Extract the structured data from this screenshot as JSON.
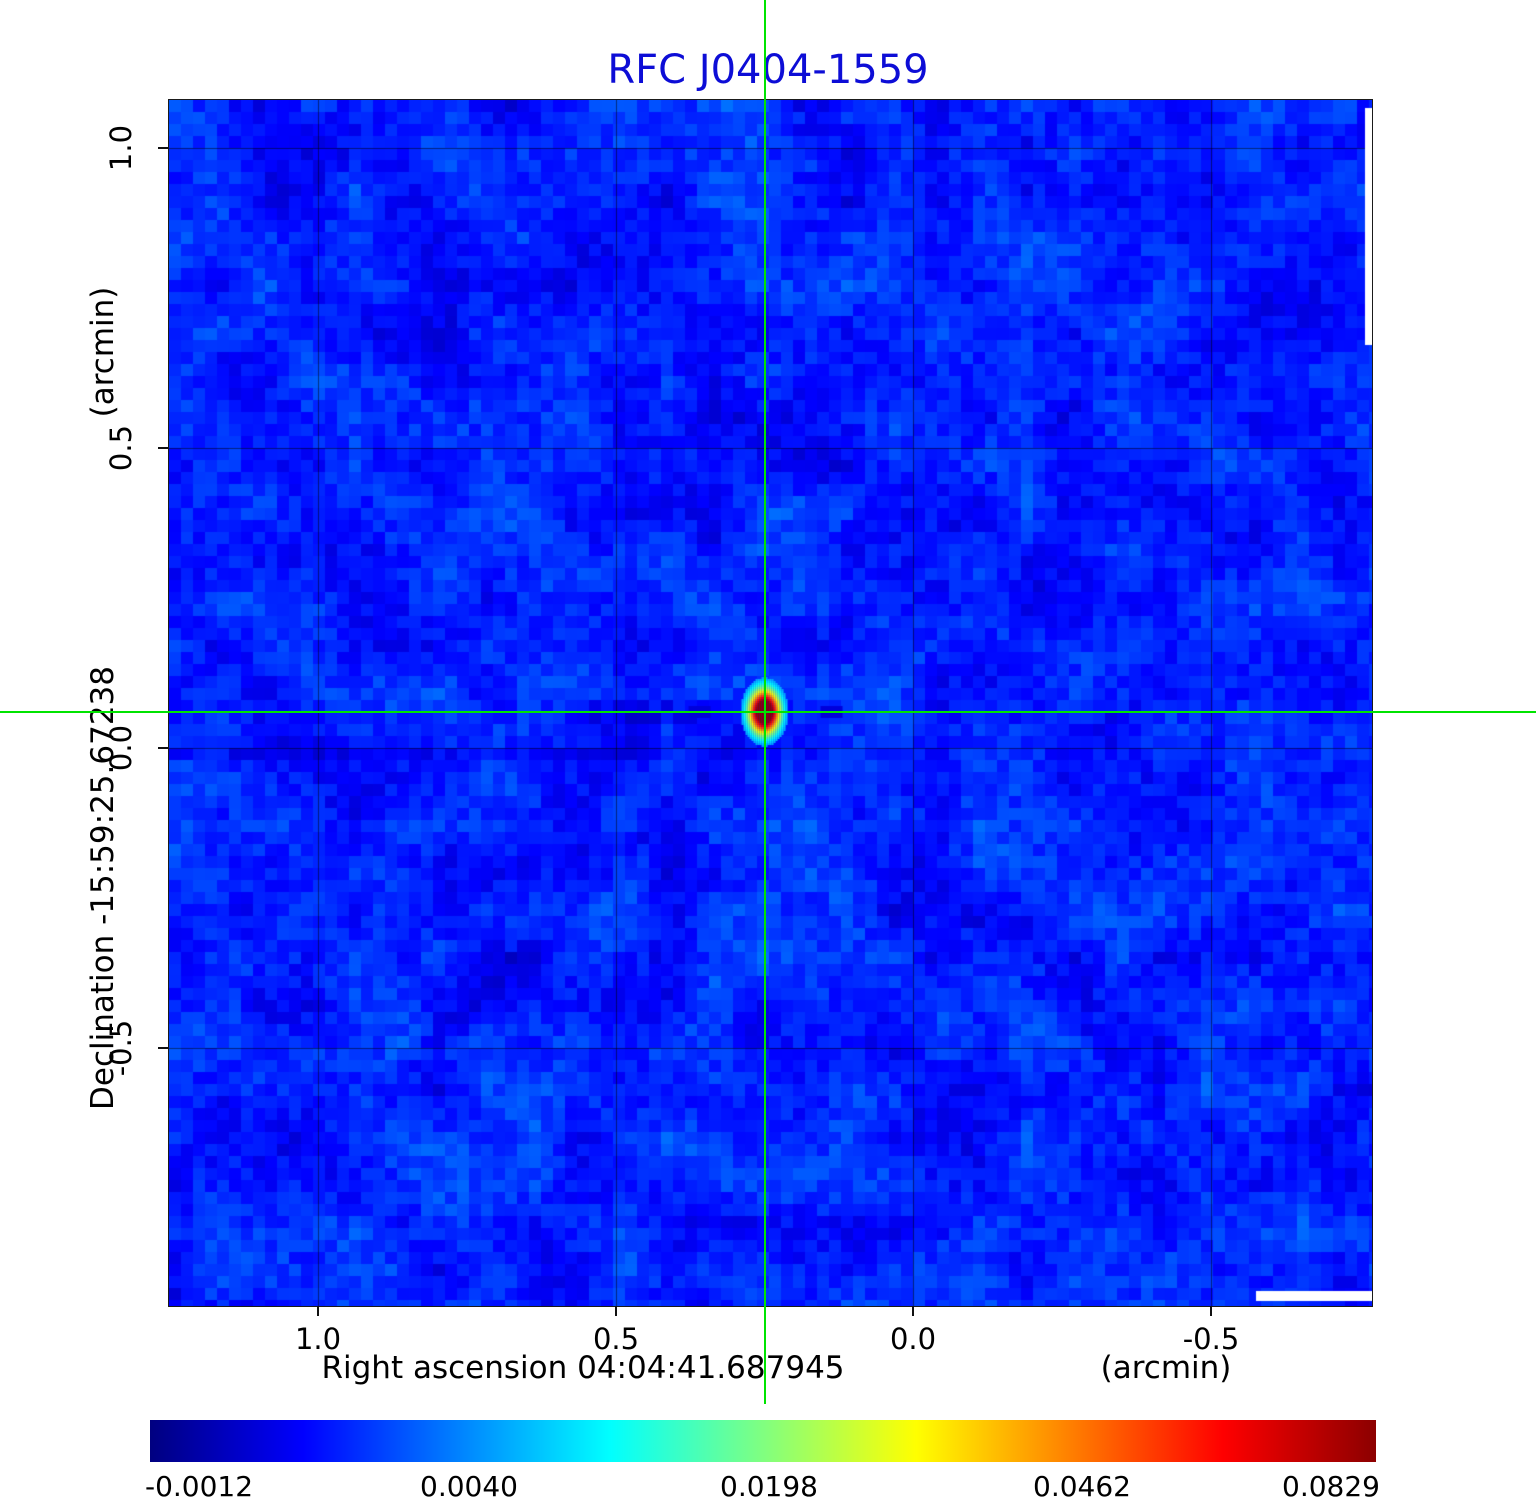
{
  "title": "RFC J0404-1559",
  "colors": {
    "title": "#0d0dd6",
    "crosshair": "#00e400",
    "grid": "rgba(0,0,0,0.5)"
  },
  "axes": {
    "y_unit": "(arcmin)",
    "y_title": "Declination  -15:59:25.67238",
    "x_title": "Right ascension  04:04:41.687945",
    "x_unit": "(arcmin)",
    "x_ticks": [
      "1.0",
      "0.5",
      "0.0",
      "-0.5"
    ],
    "y_ticks": [
      "1.0",
      "0.5",
      "0.0",
      "-0.5"
    ]
  },
  "colorbar": {
    "labels": [
      "-0.0012",
      "0.0040",
      "0.0198",
      "0.0462",
      "0.0829"
    ]
  },
  "chart_data": {
    "type": "heatmap",
    "title": "RFC J0404-1559",
    "xlabel": "Right ascension 04:04:41.687945 (arcmin)",
    "ylabel": "Declination -15:59:25.67238 (arcmin)",
    "x_range": [
      1.25,
      -0.77
    ],
    "y_range": [
      -0.93,
      1.08
    ],
    "x_ticks": [
      1.0,
      0.5,
      0.0,
      -0.5
    ],
    "y_ticks": [
      1.0,
      0.5,
      0.0,
      -0.5
    ],
    "grid": true,
    "legend": "none",
    "colormap": "jet",
    "colorbar_ticks": [
      -0.0012,
      0.004,
      0.0198,
      0.0462,
      0.0829
    ],
    "source": {
      "x_arcmin": 0.25,
      "y_arcmin": 0.06,
      "peak": 0.0829
    },
    "crosshair": {
      "x_arcmin": 0.25,
      "y_arcmin": 0.06
    }
  }
}
